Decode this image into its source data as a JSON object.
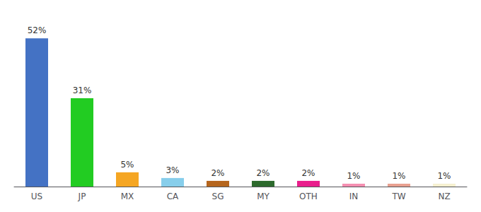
{
  "chart_data": {
    "type": "bar",
    "categories": [
      "US",
      "JP",
      "MX",
      "CA",
      "SG",
      "MY",
      "OTH",
      "IN",
      "TW",
      "NZ"
    ],
    "values": [
      52,
      31,
      5,
      3,
      2,
      2,
      2,
      1,
      1,
      1
    ],
    "value_labels": [
      "52%",
      "31%",
      "5%",
      "3%",
      "2%",
      "2%",
      "2%",
      "1%",
      "1%",
      "1%"
    ],
    "colors": [
      "#4472c4",
      "#22cc22",
      "#f5a623",
      "#87ceeb",
      "#b5651d",
      "#2d6a2d",
      "#e91e8c",
      "#f48fb1",
      "#e8a090",
      "#f5f0d0"
    ],
    "ylim": [
      0,
      58
    ],
    "tick_labels": "x",
    "grid": false
  }
}
